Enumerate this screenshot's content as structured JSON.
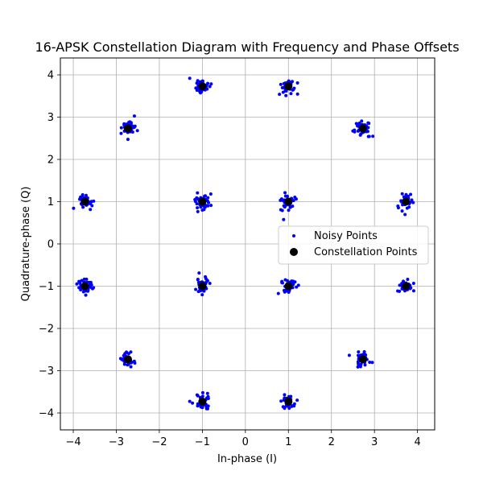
{
  "chart_data": {
    "type": "scatter",
    "title": "16-APSK Constellation Diagram with Frequency and Phase Offsets",
    "xlabel": "In-phase (I)",
    "ylabel": "Quadrature-phase (Q)",
    "xlim": [
      -4.3,
      4.4
    ],
    "ylim": [
      -4.4,
      4.4
    ],
    "xticks": [
      -4,
      -3,
      -2,
      -1,
      0,
      1,
      2,
      3,
      4
    ],
    "yticks": [
      -4,
      -3,
      -2,
      -1,
      0,
      1,
      2,
      3,
      4
    ],
    "grid": true,
    "legend_position": "center-right",
    "series": [
      {
        "name": "Noisy Points",
        "color": "#0000ff",
        "marker": "small-dot",
        "points_per_cluster": 40,
        "spread": 0.09
      },
      {
        "name": "Constellation Points",
        "color": "#000000",
        "marker": "large-dot",
        "points": [
          {
            "x": -1.0,
            "y": 3.73
          },
          {
            "x": 1.0,
            "y": 3.73
          },
          {
            "x": -2.73,
            "y": 2.73
          },
          {
            "x": 2.73,
            "y": 2.73
          },
          {
            "x": -3.73,
            "y": 1.0
          },
          {
            "x": -1.0,
            "y": 1.0
          },
          {
            "x": 1.0,
            "y": 1.0
          },
          {
            "x": 3.73,
            "y": 1.0
          },
          {
            "x": -3.73,
            "y": -1.0
          },
          {
            "x": -1.0,
            "y": -1.0
          },
          {
            "x": 1.0,
            "y": -1.0
          },
          {
            "x": 3.73,
            "y": -1.0
          },
          {
            "x": -2.73,
            "y": -2.73
          },
          {
            "x": 2.73,
            "y": -2.73
          },
          {
            "x": -1.0,
            "y": -3.73
          },
          {
            "x": 1.0,
            "y": -3.73
          }
        ]
      }
    ]
  }
}
